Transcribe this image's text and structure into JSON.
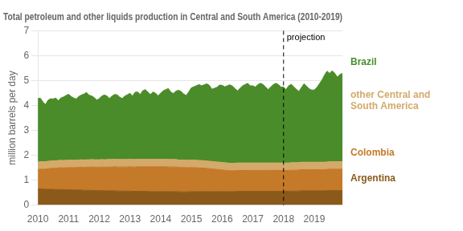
{
  "chart_data": {
    "type": "area",
    "title": "Total petroleum and other liquids production in Central and South America (2010-2019)",
    "ylabel": "million barrels per day",
    "x": [
      2010,
      2010.083333,
      2010.166667,
      2010.25,
      2010.333333,
      2010.416667,
      2010.5,
      2010.583333,
      2010.666667,
      2010.75,
      2010.833333,
      2010.916667,
      2011,
      2011.083333,
      2011.166667,
      2011.25,
      2011.333333,
      2011.416667,
      2011.5,
      2011.583333,
      2011.666667,
      2011.75,
      2011.833333,
      2011.916667,
      2012,
      2012.083333,
      2012.166667,
      2012.25,
      2012.333333,
      2012.416667,
      2012.5,
      2012.583333,
      2012.666667,
      2012.75,
      2012.833333,
      2012.916667,
      2013,
      2013.083333,
      2013.166667,
      2013.25,
      2013.333333,
      2013.416667,
      2013.5,
      2013.583333,
      2013.666667,
      2013.75,
      2013.833333,
      2013.916667,
      2014,
      2014.083333,
      2014.166667,
      2014.25,
      2014.333333,
      2014.416667,
      2014.5,
      2014.583333,
      2014.666667,
      2014.75,
      2014.833333,
      2014.916667,
      2015,
      2015.083333,
      2015.166667,
      2015.25,
      2015.333333,
      2015.416667,
      2015.5,
      2015.583333,
      2015.666667,
      2015.75,
      2015.833333,
      2015.916667,
      2016,
      2016.083333,
      2016.166667,
      2016.25,
      2016.333333,
      2016.416667,
      2016.5,
      2016.583333,
      2016.666667,
      2016.75,
      2016.833333,
      2016.916667,
      2017,
      2017.083333,
      2017.166667,
      2017.25,
      2017.333333,
      2017.416667,
      2017.5,
      2017.583333,
      2017.666667,
      2017.75,
      2017.833333,
      2017.916667,
      2018,
      2018.083333,
      2018.166667,
      2018.25,
      2018.333333,
      2018.416667,
      2018.5,
      2018.583333,
      2018.666667,
      2018.75,
      2018.833333,
      2018.916667,
      2019,
      2019.083333,
      2019.166667,
      2019.25,
      2019.333333,
      2019.416667,
      2019.5,
      2019.583333,
      2019.666667,
      2019.75,
      2019.833333,
      2019.916667
    ],
    "series": [
      {
        "name": "Argentina",
        "color": "#8B5A1A",
        "values": [
          0.65,
          0.65,
          0.64,
          0.63,
          0.63,
          0.63,
          0.63,
          0.62,
          0.62,
          0.62,
          0.61,
          0.61,
          0.61,
          0.61,
          0.6,
          0.6,
          0.6,
          0.6,
          0.59,
          0.59,
          0.59,
          0.59,
          0.58,
          0.58,
          0.58,
          0.58,
          0.57,
          0.57,
          0.57,
          0.57,
          0.57,
          0.56,
          0.56,
          0.56,
          0.56,
          0.56,
          0.56,
          0.55,
          0.55,
          0.55,
          0.55,
          0.55,
          0.55,
          0.54,
          0.54,
          0.54,
          0.54,
          0.54,
          0.54,
          0.54,
          0.54,
          0.54,
          0.54,
          0.54,
          0.54,
          0.53,
          0.53,
          0.53,
          0.53,
          0.53,
          0.54,
          0.54,
          0.54,
          0.54,
          0.54,
          0.54,
          0.54,
          0.54,
          0.54,
          0.54,
          0.54,
          0.54,
          0.54,
          0.54,
          0.54,
          0.54,
          0.54,
          0.54,
          0.55,
          0.55,
          0.55,
          0.55,
          0.55,
          0.55,
          0.55,
          0.55,
          0.55,
          0.55,
          0.55,
          0.55,
          0.55,
          0.55,
          0.55,
          0.55,
          0.55,
          0.55,
          0.55,
          0.55,
          0.55,
          0.56,
          0.56,
          0.56,
          0.56,
          0.57,
          0.57,
          0.57,
          0.57,
          0.57,
          0.57,
          0.57,
          0.57,
          0.57,
          0.57,
          0.58,
          0.58,
          0.58,
          0.58,
          0.58,
          0.58,
          0.58
        ]
      },
      {
        "name": "Colombia",
        "color": "#C47A28",
        "values": [
          0.78,
          0.79,
          0.8,
          0.81,
          0.83,
          0.84,
          0.85,
          0.86,
          0.87,
          0.88,
          0.88,
          0.89,
          0.89,
          0.9,
          0.9,
          0.91,
          0.91,
          0.92,
          0.92,
          0.93,
          0.93,
          0.94,
          0.94,
          0.94,
          0.94,
          0.95,
          0.95,
          0.96,
          0.96,
          0.96,
          0.97,
          0.97,
          0.97,
          0.97,
          0.97,
          0.97,
          0.98,
          0.98,
          0.98,
          0.99,
          0.99,
          0.99,
          0.99,
          1.0,
          1.0,
          1.0,
          1.0,
          1.0,
          1.0,
          1.0,
          1.0,
          0.99,
          0.99,
          0.99,
          0.99,
          0.98,
          0.98,
          0.98,
          0.97,
          0.97,
          0.97,
          0.96,
          0.96,
          0.95,
          0.95,
          0.94,
          0.93,
          0.92,
          0.91,
          0.9,
          0.89,
          0.88,
          0.87,
          0.86,
          0.85,
          0.84,
          0.84,
          0.84,
          0.84,
          0.84,
          0.84,
          0.84,
          0.84,
          0.84,
          0.84,
          0.84,
          0.84,
          0.84,
          0.84,
          0.84,
          0.84,
          0.84,
          0.84,
          0.84,
          0.84,
          0.84,
          0.84,
          0.84,
          0.84,
          0.84,
          0.84,
          0.84,
          0.85,
          0.85,
          0.85,
          0.85,
          0.85,
          0.85,
          0.85,
          0.85,
          0.85,
          0.85,
          0.85,
          0.85,
          0.86,
          0.86,
          0.86,
          0.86,
          0.86,
          0.86
        ]
      },
      {
        "name": "other Central and\nSouth America",
        "color": "#D4A96A",
        "values": [
          0.3,
          0.3,
          0.3,
          0.3,
          0.3,
          0.3,
          0.3,
          0.3,
          0.3,
          0.3,
          0.3,
          0.3,
          0.3,
          0.3,
          0.3,
          0.3,
          0.3,
          0.3,
          0.3,
          0.3,
          0.3,
          0.3,
          0.3,
          0.3,
          0.3,
          0.3,
          0.3,
          0.3,
          0.3,
          0.3,
          0.3,
          0.3,
          0.3,
          0.3,
          0.3,
          0.3,
          0.3,
          0.3,
          0.3,
          0.3,
          0.3,
          0.3,
          0.3,
          0.3,
          0.3,
          0.3,
          0.3,
          0.3,
          0.3,
          0.3,
          0.3,
          0.3,
          0.3,
          0.3,
          0.3,
          0.3,
          0.3,
          0.3,
          0.3,
          0.3,
          0.3,
          0.3,
          0.3,
          0.3,
          0.3,
          0.3,
          0.3,
          0.3,
          0.3,
          0.3,
          0.3,
          0.3,
          0.3,
          0.3,
          0.3,
          0.3,
          0.3,
          0.3,
          0.3,
          0.3,
          0.3,
          0.3,
          0.3,
          0.3,
          0.3,
          0.3,
          0.3,
          0.3,
          0.3,
          0.3,
          0.3,
          0.3,
          0.3,
          0.3,
          0.3,
          0.3,
          0.3,
          0.3,
          0.3,
          0.3,
          0.3,
          0.3,
          0.3,
          0.3,
          0.3,
          0.3,
          0.3,
          0.3,
          0.3,
          0.3,
          0.3,
          0.3,
          0.3,
          0.3,
          0.3,
          0.3,
          0.3,
          0.3,
          0.3,
          0.3
        ]
      },
      {
        "name": "Brazil",
        "color": "#4A8C2A",
        "values": [
          2.55,
          2.55,
          2.4,
          2.3,
          2.45,
          2.5,
          2.48,
          2.52,
          2.4,
          2.5,
          2.55,
          2.6,
          2.65,
          2.55,
          2.5,
          2.45,
          2.55,
          2.6,
          2.65,
          2.7,
          2.6,
          2.55,
          2.5,
          2.4,
          2.45,
          2.55,
          2.6,
          2.55,
          2.45,
          2.55,
          2.6,
          2.6,
          2.5,
          2.45,
          2.55,
          2.6,
          2.65,
          2.55,
          2.7,
          2.7,
          2.6,
          2.75,
          2.8,
          2.7,
          2.6,
          2.7,
          2.65,
          2.55,
          2.65,
          2.75,
          2.8,
          2.85,
          2.7,
          2.65,
          2.75,
          2.8,
          2.75,
          2.65,
          2.6,
          2.75,
          2.9,
          2.95,
          3.0,
          3.05,
          3.0,
          3.05,
          3.1,
          3.05,
          2.9,
          2.95,
          3.0,
          3.1,
          3.1,
          3.05,
          3.1,
          3.15,
          3.1,
          3.0,
          2.9,
          3.0,
          3.1,
          3.15,
          3.2,
          3.1,
          3.1,
          3.05,
          3.15,
          3.2,
          3.15,
          3.05,
          2.95,
          3.05,
          3.15,
          3.2,
          3.15,
          3.05,
          3.05,
          2.95,
          3.1,
          3.15,
          3.05,
          2.95,
          2.85,
          3.0,
          3.15,
          3.05,
          2.95,
          2.9,
          2.9,
          3.0,
          3.15,
          3.3,
          3.5,
          3.65,
          3.55,
          3.65,
          3.55,
          3.4,
          3.5,
          3.55
        ]
      }
    ],
    "xlim": [
      2010.0,
      2019.917
    ],
    "ylim": [
      0,
      7
    ],
    "xticks": [
      2010,
      2011,
      2012,
      2013,
      2014,
      2015,
      2016,
      2017,
      2018,
      2019
    ],
    "yticks": [
      0,
      1,
      2,
      3,
      4,
      5,
      6,
      7
    ],
    "stacked": true,
    "grid": "y",
    "legend": "right",
    "annotations": [
      {
        "type": "vline",
        "x": 2018.0,
        "label": "projection",
        "line_style": "dashed"
      }
    ]
  }
}
